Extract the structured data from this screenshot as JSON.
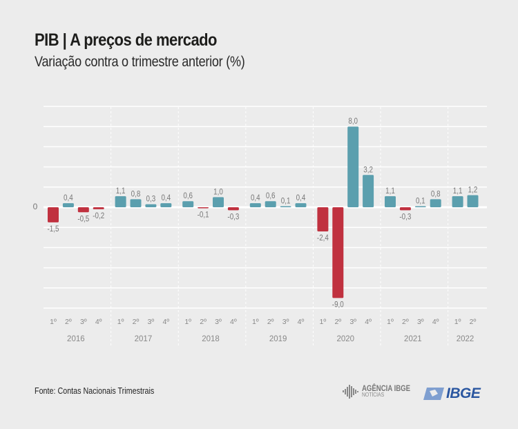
{
  "header": {
    "title": "PIB | A preços de mercado",
    "subtitle": "Variação contra o trimestre anterior (%)"
  },
  "footer": {
    "source": "Fonte: Contas Nacionais Trimestrais",
    "agencia_line1": "AGÊNCIA IBGE",
    "agencia_line2": "NOTÍCIAS",
    "ibge_logo": "IBGE"
  },
  "colors": {
    "positive": "#5b9fae",
    "negative": "#c0313f",
    "background": "#ececec",
    "grid": "#ffffff",
    "label": "#777777"
  },
  "chart_data": {
    "type": "bar",
    "title": "PIB | A preços de mercado",
    "subtitle": "Variação contra o trimestre anterior (%)",
    "xlabel": "",
    "ylabel": "",
    "ylim": [
      -10,
      10
    ],
    "grid_step": 2,
    "grid": true,
    "y_tick_labels": [
      "0"
    ],
    "groups": [
      {
        "year": "2016",
        "quarters": [
          "1º",
          "2º",
          "3º",
          "4º"
        ],
        "values": [
          -1.5,
          0.4,
          -0.5,
          -0.2
        ],
        "labels": [
          "-1,5",
          "0,4",
          "-0,5",
          "-0,2"
        ]
      },
      {
        "year": "2017",
        "quarters": [
          "1º",
          "2º",
          "3º",
          "4º"
        ],
        "values": [
          1.1,
          0.8,
          0.3,
          0.4
        ],
        "labels": [
          "1,1",
          "0,8",
          "0,3",
          "0,4"
        ]
      },
      {
        "year": "2018",
        "quarters": [
          "1º",
          "2º",
          "3º",
          "4º"
        ],
        "values": [
          0.6,
          -0.1,
          1.0,
          -0.3
        ],
        "labels": [
          "0,6",
          "-0,1",
          "1,0",
          "-0,3"
        ]
      },
      {
        "year": "2019",
        "quarters": [
          "1º",
          "2º",
          "3º",
          "4º"
        ],
        "values": [
          0.4,
          0.6,
          0.1,
          0.4
        ],
        "labels": [
          "0,4",
          "0,6",
          "0,1",
          "0,4"
        ]
      },
      {
        "year": "2020",
        "quarters": [
          "1º",
          "2º",
          "3º",
          "4º"
        ],
        "values": [
          -2.4,
          -9.0,
          8.0,
          3.2
        ],
        "labels": [
          "-2,4",
          "-9,0",
          "8,0",
          "3,2"
        ]
      },
      {
        "year": "2021",
        "quarters": [
          "1º",
          "2º",
          "3º",
          "4º"
        ],
        "values": [
          1.1,
          -0.3,
          0.1,
          0.8
        ],
        "labels": [
          "1,1",
          "-0,3",
          "0,1",
          "0,8"
        ]
      },
      {
        "year": "2022",
        "quarters": [
          "1º",
          "2º"
        ],
        "values": [
          1.1,
          1.2
        ],
        "labels": [
          "1,1",
          "1,2"
        ]
      }
    ]
  }
}
